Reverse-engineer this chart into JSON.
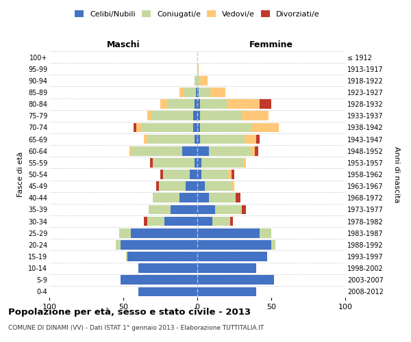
{
  "age_groups": [
    "0-4",
    "5-9",
    "10-14",
    "15-19",
    "20-24",
    "25-29",
    "30-34",
    "35-39",
    "40-44",
    "45-49",
    "50-54",
    "55-59",
    "60-64",
    "65-69",
    "70-74",
    "75-79",
    "80-84",
    "85-89",
    "90-94",
    "95-99",
    "100+"
  ],
  "birth_years": [
    "2008-2012",
    "2003-2007",
    "1998-2002",
    "1993-1997",
    "1988-1992",
    "1983-1987",
    "1978-1982",
    "1973-1977",
    "1968-1972",
    "1963-1967",
    "1958-1962",
    "1953-1957",
    "1948-1952",
    "1943-1947",
    "1938-1942",
    "1933-1937",
    "1928-1932",
    "1923-1927",
    "1918-1922",
    "1913-1917",
    "≤ 1912"
  ],
  "male": {
    "celibi": [
      40,
      52,
      40,
      47,
      52,
      45,
      22,
      18,
      12,
      8,
      5,
      2,
      10,
      2,
      3,
      3,
      2,
      1,
      0,
      0,
      0
    ],
    "coniugati": [
      0,
      0,
      0,
      1,
      3,
      8,
      12,
      15,
      18,
      18,
      18,
      28,
      35,
      32,
      35,
      28,
      18,
      8,
      2,
      0,
      0
    ],
    "vedovi": [
      0,
      0,
      0,
      0,
      0,
      0,
      0,
      0,
      0,
      0,
      0,
      0,
      1,
      2,
      3,
      3,
      5,
      3,
      0,
      0,
      0
    ],
    "divorziati": [
      0,
      0,
      0,
      0,
      0,
      0,
      2,
      0,
      0,
      2,
      2,
      2,
      0,
      0,
      2,
      0,
      0,
      0,
      0,
      0,
      0
    ]
  },
  "female": {
    "nubili": [
      40,
      52,
      40,
      47,
      50,
      42,
      10,
      12,
      8,
      5,
      3,
      3,
      8,
      2,
      2,
      2,
      2,
      1,
      0,
      0,
      0
    ],
    "coniugate": [
      0,
      0,
      0,
      0,
      3,
      8,
      12,
      18,
      18,
      18,
      18,
      28,
      28,
      30,
      35,
      28,
      18,
      8,
      2,
      0,
      0
    ],
    "vedove": [
      0,
      0,
      0,
      0,
      0,
      0,
      0,
      0,
      0,
      2,
      2,
      2,
      3,
      8,
      18,
      18,
      22,
      10,
      5,
      1,
      0
    ],
    "divorziate": [
      0,
      0,
      0,
      0,
      0,
      0,
      2,
      3,
      3,
      0,
      2,
      0,
      2,
      2,
      0,
      0,
      8,
      0,
      0,
      0,
      0
    ]
  },
  "colors": {
    "celibi": "#4472c4",
    "coniugati": "#c5d9a0",
    "vedovi": "#ffc878",
    "divorziati": "#c0392b"
  },
  "xlim": 100,
  "title": "Popolazione per età, sesso e stato civile - 2013",
  "subtitle": "COMUNE DI DINAMI (VV) - Dati ISTAT 1° gennaio 2013 - Elaborazione TUTTITALIA.IT",
  "ylabel_left": "Fasce di età",
  "ylabel_right": "Anni di nascita",
  "xlabel_left": "Maschi",
  "xlabel_right": "Femmine",
  "background_color": "#ffffff",
  "legend_labels": [
    "Celibi/Nubili",
    "Coniugati/e",
    "Vedovi/e",
    "Divorziati/e"
  ]
}
